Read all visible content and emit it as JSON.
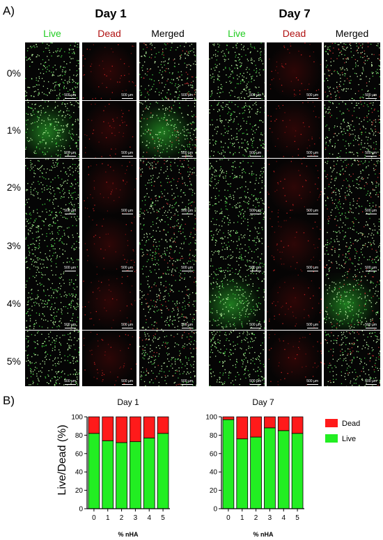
{
  "panel_a": "A)",
  "panel_b": "B)",
  "micrographs": {
    "days": [
      {
        "title": "Day 1",
        "columns": [
          "Live",
          "Dead",
          "Merged"
        ]
      },
      {
        "title": "Day 7",
        "columns": [
          "Live",
          "Dead",
          "Merged"
        ]
      }
    ],
    "rows": [
      "0%",
      "1%",
      "2%",
      "3%",
      "4%",
      "5%"
    ],
    "scale_label": "500 µm",
    "colors": {
      "live": "#22dd22",
      "dead": "#bb1111",
      "merged": "#000000"
    }
  },
  "chart_data": [
    {
      "type": "bar",
      "stacked": true,
      "title": "Day 1",
      "xlabel": "% nHA",
      "ylabel": "Live/Dead (%)",
      "categories": [
        "0",
        "1",
        "2",
        "3",
        "4",
        "5"
      ],
      "ylim": [
        0,
        100
      ],
      "yticks": [
        0,
        20,
        40,
        60,
        80,
        100
      ],
      "series": [
        {
          "name": "Live",
          "color": "#22ee22",
          "values": [
            82,
            74,
            72,
            73,
            77,
            82
          ]
        },
        {
          "name": "Dead",
          "color": "#ff1a1a",
          "values": [
            18,
            26,
            28,
            27,
            23,
            18
          ]
        }
      ]
    },
    {
      "type": "bar",
      "stacked": true,
      "title": "Day 7",
      "xlabel": "% nHA",
      "ylabel": "",
      "categories": [
        "0",
        "1",
        "2",
        "3",
        "4",
        "5"
      ],
      "ylim": [
        0,
        100
      ],
      "yticks": [
        0,
        20,
        40,
        60,
        80,
        100
      ],
      "legend": "right",
      "series": [
        {
          "name": "Live",
          "color": "#22ee22",
          "values": [
            97,
            76,
            78,
            88,
            85,
            82
          ]
        },
        {
          "name": "Dead",
          "color": "#ff1a1a",
          "values": [
            3,
            24,
            22,
            12,
            15,
            18
          ]
        }
      ]
    }
  ]
}
